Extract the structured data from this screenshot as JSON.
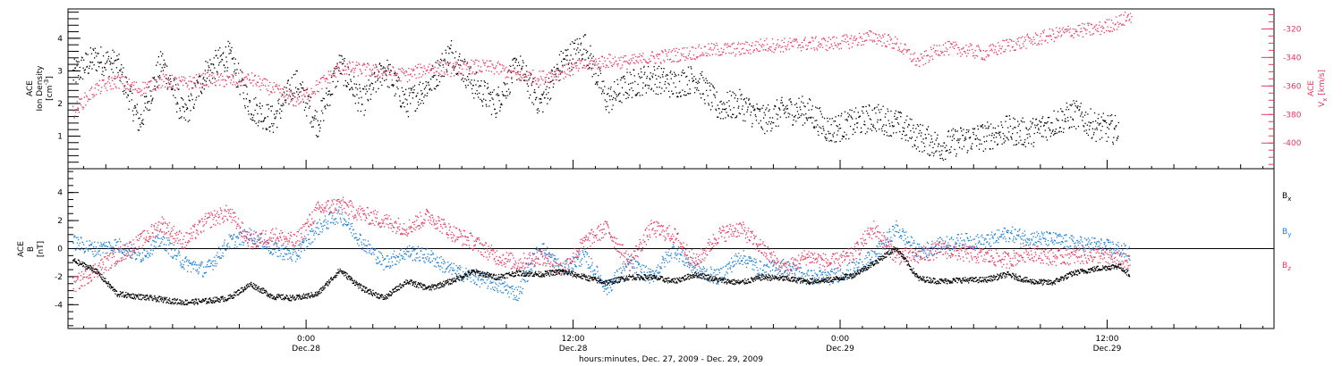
{
  "colors": {
    "black": "#000000",
    "pink": "#e8365e",
    "blue": "#1a7fd8",
    "background": "#ffffff"
  },
  "xaxis": {
    "caption": "hours:minutes, Dec. 27, 2009 - Dec. 29, 2009",
    "ticks": [
      {
        "hours": 24,
        "time": "0:00",
        "date": "Dec.28"
      },
      {
        "hours": 36,
        "time": "12:00",
        "date": "Dec.28"
      },
      {
        "hours": 48,
        "time": "0:00",
        "date": "Dec.29"
      },
      {
        "hours": 60,
        "time": "12:00",
        "date": "Dec.29"
      }
    ]
  },
  "chart_data": [
    {
      "type": "scatter",
      "panel": "top",
      "x_units": "hours since Dec. 27, 2009 0:00",
      "xlim": [
        13.3,
        67.5
      ],
      "ylabel": {
        "line1": "ACE",
        "line2": "Ion Density",
        "line3": "[cm",
        "sup": "-3",
        "close": "]"
      },
      "y2label": {
        "line1": "ACE",
        "line2a": "V",
        "sub": "x",
        "line2b": " [km/s]"
      },
      "ylim": [
        0,
        4.9
      ],
      "y2lim": [
        -418,
        -306
      ],
      "yticks": [
        1,
        2,
        3,
        4
      ],
      "y2ticks": [
        -320,
        -340,
        -360,
        -380,
        -400
      ],
      "grid": false,
      "series": [
        {
          "name": "",
          "axis": "left",
          "color": "#000000",
          "points": [
            [
              13.5,
              2.9
            ],
            [
              14.5,
              3.4
            ],
            [
              15.5,
              3.2
            ],
            [
              16.5,
              1.4
            ],
            [
              17.5,
              3.3
            ],
            [
              18.5,
              1.6
            ],
            [
              19.5,
              3.0
            ],
            [
              20.5,
              3.5
            ],
            [
              21.5,
              1.9
            ],
            [
              22.5,
              1.5
            ],
            [
              23.5,
              2.7
            ],
            [
              24.5,
              1.4
            ],
            [
              25.5,
              3.2
            ],
            [
              26.5,
              2.0
            ],
            [
              27.5,
              3.1
            ],
            [
              28.5,
              2.0
            ],
            [
              29.5,
              2.6
            ],
            [
              30.5,
              3.6
            ],
            [
              31.5,
              2.6
            ],
            [
              32.5,
              2.0
            ],
            [
              33.5,
              3.2
            ],
            [
              34.5,
              2.0
            ],
            [
              35.5,
              3.3
            ],
            [
              36.5,
              3.8
            ],
            [
              37.5,
              2.1
            ],
            [
              38.5,
              2.6
            ],
            [
              39.5,
              2.8
            ],
            [
              40.5,
              2.6
            ],
            [
              41.5,
              2.8
            ],
            [
              42.5,
              1.9
            ],
            [
              43.5,
              2.0
            ],
            [
              44.5,
              1.5
            ],
            [
              45.5,
              1.8
            ],
            [
              46.5,
              1.8
            ],
            [
              47.5,
              1.2
            ],
            [
              48.5,
              1.4
            ],
            [
              49.5,
              1.6
            ],
            [
              50.5,
              1.4
            ],
            [
              51.5,
              1.0
            ],
            [
              52.5,
              0.7
            ],
            [
              53.5,
              0.9
            ],
            [
              54.5,
              1.0
            ],
            [
              55.5,
              1.2
            ],
            [
              56.5,
              1.1
            ],
            [
              57.5,
              1.4
            ],
            [
              58.5,
              1.7
            ],
            [
              59.5,
              1.3
            ],
            [
              60.5,
              1.2
            ]
          ]
        },
        {
          "name": "",
          "axis": "right",
          "color": "#e8365e",
          "points": [
            [
              13.5,
              -378
            ],
            [
              14.5,
              -362
            ],
            [
              15.5,
              -356
            ],
            [
              16.5,
              -362
            ],
            [
              17.5,
              -356
            ],
            [
              18.5,
              -358
            ],
            [
              19.5,
              -355
            ],
            [
              20.5,
              -356
            ],
            [
              21.5,
              -355
            ],
            [
              22.5,
              -362
            ],
            [
              23.5,
              -370
            ],
            [
              24.5,
              -360
            ],
            [
              25.5,
              -347
            ],
            [
              26.5,
              -348
            ],
            [
              27.5,
              -350
            ],
            [
              28.5,
              -352
            ],
            [
              29.5,
              -347
            ],
            [
              30.5,
              -348
            ],
            [
              31.5,
              -346
            ],
            [
              32.5,
              -347
            ],
            [
              33.5,
              -352
            ],
            [
              34.5,
              -354
            ],
            [
              35.5,
              -350
            ],
            [
              36.5,
              -345
            ],
            [
              37.5,
              -342
            ],
            [
              38.5,
              -343
            ],
            [
              39.5,
              -340
            ],
            [
              40.5,
              -338
            ],
            [
              41.5,
              -336
            ],
            [
              42.5,
              -334
            ],
            [
              43.5,
              -334
            ],
            [
              44.5,
              -331
            ],
            [
              45.5,
              -331
            ],
            [
              46.5,
              -330
            ],
            [
              47.5,
              -330
            ],
            [
              48.5,
              -328
            ],
            [
              49.5,
              -325
            ],
            [
              50.5,
              -330
            ],
            [
              51.5,
              -343
            ],
            [
              52.5,
              -333
            ],
            [
              53.5,
              -334
            ],
            [
              54.5,
              -337
            ],
            [
              55.5,
              -331
            ],
            [
              56.5,
              -328
            ],
            [
              57.5,
              -324
            ],
            [
              58.5,
              -321
            ],
            [
              59.5,
              -320
            ],
            [
              60.5,
              -315
            ],
            [
              61.1,
              -310
            ]
          ]
        }
      ]
    },
    {
      "type": "scatter",
      "panel": "bottom",
      "x_units": "hours since Dec. 27, 2009 0:00",
      "xlim": [
        13.3,
        67.5
      ],
      "ylabel": {
        "line1": "ACE",
        "line2": "B",
        "line3": "[nT]"
      },
      "ylim": [
        -5.7,
        5.7
      ],
      "yticks": [
        4,
        2,
        0,
        -2,
        -4
      ],
      "zero_line": true,
      "grid": false,
      "legend_position": "right",
      "series": [
        {
          "name": "B",
          "sub": "x",
          "color": "#000000",
          "points": [
            [
              13.5,
              -0.8
            ],
            [
              14.5,
              -1.5
            ],
            [
              15.5,
              -3.2
            ],
            [
              16.5,
              -3.4
            ],
            [
              17.5,
              -3.6
            ],
            [
              18.5,
              -3.8
            ],
            [
              19.5,
              -3.7
            ],
            [
              20.5,
              -3.5
            ],
            [
              21.5,
              -2.5
            ],
            [
              22.5,
              -3.4
            ],
            [
              23.5,
              -3.5
            ],
            [
              24.5,
              -3.2
            ],
            [
              25.5,
              -1.5
            ],
            [
              26.5,
              -2.8
            ],
            [
              27.5,
              -3.5
            ],
            [
              28.5,
              -2.3
            ],
            [
              29.5,
              -2.8
            ],
            [
              30.5,
              -2.3
            ],
            [
              31.5,
              -1.6
            ],
            [
              32.5,
              -2.0
            ],
            [
              33.5,
              -1.7
            ],
            [
              34.5,
              -1.8
            ],
            [
              35.5,
              -1.6
            ],
            [
              36.5,
              -2.0
            ],
            [
              37.5,
              -2.4
            ],
            [
              38.5,
              -2.0
            ],
            [
              39.5,
              -2.0
            ],
            [
              40.5,
              -2.3
            ],
            [
              41.5,
              -1.8
            ],
            [
              42.5,
              -2.2
            ],
            [
              43.5,
              -2.4
            ],
            [
              44.5,
              -2.0
            ],
            [
              45.5,
              -2.1
            ],
            [
              46.5,
              -2.3
            ],
            [
              47.5,
              -2.2
            ],
            [
              48.5,
              -1.9
            ],
            [
              49.5,
              -1.0
            ],
            [
              50.5,
              0.1
            ],
            [
              51.5,
              -2.1
            ],
            [
              52.5,
              -2.3
            ],
            [
              53.5,
              -2.2
            ],
            [
              54.5,
              -2.2
            ],
            [
              55.5,
              -1.8
            ],
            [
              56.5,
              -2.3
            ],
            [
              57.5,
              -2.4
            ],
            [
              58.5,
              -1.7
            ],
            [
              59.5,
              -1.4
            ],
            [
              60.5,
              -1.2
            ],
            [
              61.0,
              -1.8
            ]
          ]
        },
        {
          "name": "B",
          "sub": "y",
          "color": "#1a7fd8",
          "points": [
            [
              13.5,
              0.5
            ],
            [
              14.5,
              0.0
            ],
            [
              15.5,
              0.3
            ],
            [
              16.5,
              -0.5
            ],
            [
              17.5,
              0.7
            ],
            [
              18.5,
              -1.0
            ],
            [
              19.5,
              -1.5
            ],
            [
              20.5,
              0.5
            ],
            [
              21.5,
              1.0
            ],
            [
              22.5,
              0.0
            ],
            [
              23.5,
              -0.5
            ],
            [
              24.5,
              1.5
            ],
            [
              25.5,
              2.5
            ],
            [
              26.5,
              0.5
            ],
            [
              27.5,
              -1.0
            ],
            [
              28.5,
              -0.2
            ],
            [
              29.5,
              -0.5
            ],
            [
              30.5,
              -1.5
            ],
            [
              31.5,
              -2.0
            ],
            [
              32.5,
              -2.5
            ],
            [
              33.5,
              -3.2
            ],
            [
              34.5,
              0.2
            ],
            [
              35.5,
              -1.5
            ],
            [
              36.5,
              -0.5
            ],
            [
              37.5,
              -2.8
            ],
            [
              38.5,
              -1.0
            ],
            [
              39.5,
              -2.0
            ],
            [
              40.5,
              0.0
            ],
            [
              41.5,
              -1.5
            ],
            [
              42.5,
              -2.0
            ],
            [
              43.5,
              -0.5
            ],
            [
              44.5,
              -1.5
            ],
            [
              45.5,
              -1.2
            ],
            [
              46.5,
              -2.0
            ],
            [
              47.5,
              -2.0
            ],
            [
              48.5,
              -1.5
            ],
            [
              49.5,
              -0.5
            ],
            [
              50.5,
              1.5
            ],
            [
              51.5,
              -0.2
            ],
            [
              52.5,
              0.3
            ],
            [
              53.5,
              0.6
            ],
            [
              54.5,
              0.5
            ],
            [
              55.5,
              1.1
            ],
            [
              56.5,
              0.8
            ],
            [
              57.5,
              0.7
            ],
            [
              58.5,
              0.4
            ],
            [
              59.5,
              0.3
            ],
            [
              60.5,
              0.0
            ],
            [
              61.0,
              -0.3
            ]
          ]
        },
        {
          "name": "B",
          "sub": "z",
          "color": "#e8365e",
          "points": [
            [
              13.5,
              -2.6
            ],
            [
              14.5,
              -1.5
            ],
            [
              15.5,
              -0.5
            ],
            [
              16.5,
              0.5
            ],
            [
              17.5,
              1.8
            ],
            [
              18.5,
              0.5
            ],
            [
              19.5,
              2.0
            ],
            [
              20.5,
              2.6
            ],
            [
              21.5,
              0.5
            ],
            [
              22.5,
              1.0
            ],
            [
              23.5,
              0.5
            ],
            [
              24.5,
              2.8
            ],
            [
              25.5,
              3.2
            ],
            [
              26.5,
              2.5
            ],
            [
              27.5,
              2.0
            ],
            [
              28.5,
              1.5
            ],
            [
              29.5,
              2.4
            ],
            [
              30.5,
              1.2
            ],
            [
              31.5,
              0.5
            ],
            [
              32.5,
              -0.5
            ],
            [
              33.5,
              -1.0
            ],
            [
              34.5,
              -0.5
            ],
            [
              35.5,
              -1.5
            ],
            [
              36.5,
              0.5
            ],
            [
              37.5,
              1.5
            ],
            [
              38.5,
              -1.0
            ],
            [
              39.5,
              1.5
            ],
            [
              40.5,
              1.0
            ],
            [
              41.5,
              -1.0
            ],
            [
              42.5,
              1.0
            ],
            [
              43.5,
              1.5
            ],
            [
              44.5,
              0.0
            ],
            [
              45.5,
              -1.5
            ],
            [
              46.5,
              -0.5
            ],
            [
              47.5,
              -1.0
            ],
            [
              48.5,
              -0.5
            ],
            [
              49.5,
              1.5
            ],
            [
              50.5,
              -0.5
            ],
            [
              51.5,
              -0.5
            ],
            [
              52.5,
              0.0
            ],
            [
              53.5,
              -0.3
            ],
            [
              54.5,
              -0.5
            ],
            [
              55.5,
              -0.8
            ],
            [
              56.5,
              -0.2
            ],
            [
              57.5,
              -0.6
            ],
            [
              58.5,
              -0.5
            ],
            [
              59.5,
              -0.4
            ],
            [
              60.5,
              -0.8
            ],
            [
              61.0,
              -1.0
            ]
          ]
        }
      ]
    }
  ]
}
